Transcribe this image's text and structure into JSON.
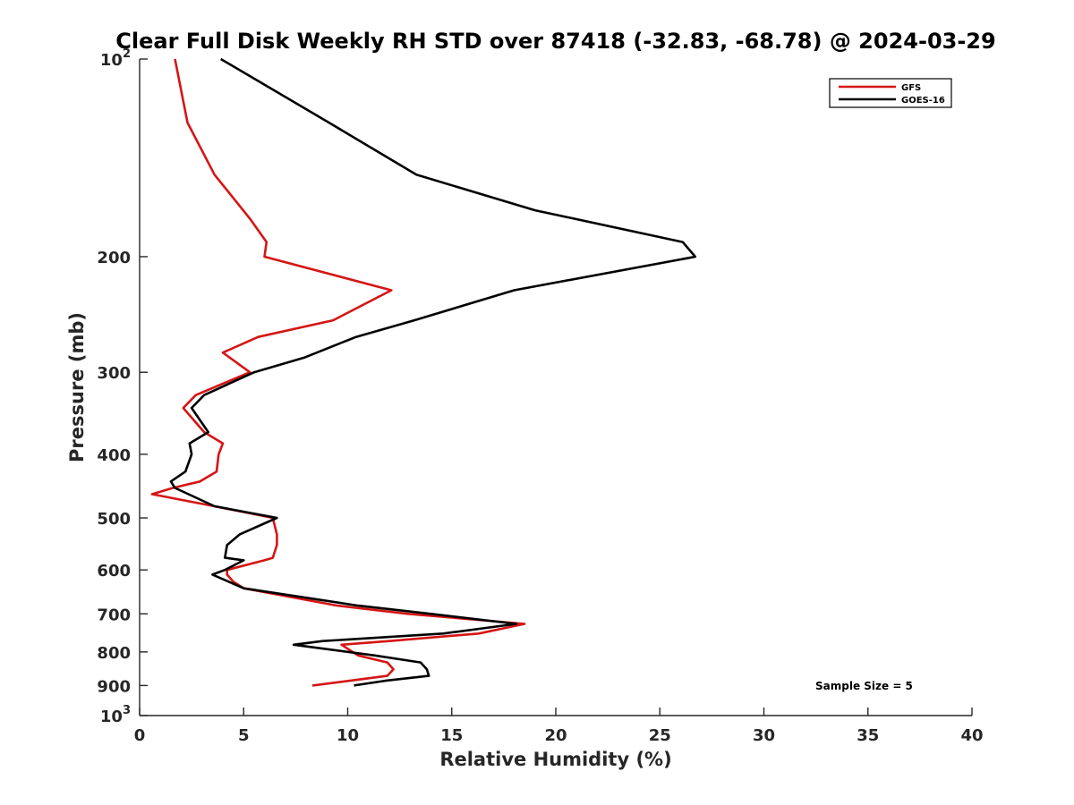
{
  "chart_data": {
    "type": "line",
    "title": "Clear Full Disk Weekly RH STD over 87418 (-32.83, -68.78) @ 2024-03-29",
    "xlabel": "Relative Humidity (%)",
    "ylabel": "Pressure (mb)",
    "xlim": [
      0,
      40
    ],
    "ylim": [
      100,
      1000
    ],
    "y_scale": "log",
    "y_reversed": true,
    "x_ticks": [
      0,
      5,
      10,
      15,
      20,
      25,
      30,
      35,
      40
    ],
    "y_ticks": [
      {
        "value": 100,
        "base": "10",
        "exp": "2"
      },
      {
        "value": 200,
        "label": "200"
      },
      {
        "value": 300,
        "label": "300"
      },
      {
        "value": 400,
        "label": "400"
      },
      {
        "value": 500,
        "label": "500"
      },
      {
        "value": 600,
        "label": "600"
      },
      {
        "value": 700,
        "label": "700"
      },
      {
        "value": 800,
        "label": "800"
      },
      {
        "value": 900,
        "label": "900"
      },
      {
        "value": 1000,
        "base": "10",
        "exp": "3"
      }
    ],
    "grid": false,
    "legend_position": "top-right",
    "annotation": "Sample Size = 5",
    "series": [
      {
        "name": "GFS",
        "color": "#d61515",
        "points": [
          [
            1.7,
            100
          ],
          [
            2.3,
            125
          ],
          [
            3.6,
            150
          ],
          [
            5.3,
            175
          ],
          [
            6.1,
            190
          ],
          [
            6.0,
            200
          ],
          [
            12.1,
            225
          ],
          [
            9.3,
            250
          ],
          [
            5.7,
            265
          ],
          [
            4.0,
            280
          ],
          [
            5.3,
            300
          ],
          [
            2.7,
            325
          ],
          [
            2.1,
            340
          ],
          [
            3.1,
            370
          ],
          [
            4.0,
            385
          ],
          [
            3.8,
            400
          ],
          [
            3.7,
            425
          ],
          [
            2.9,
            440
          ],
          [
            1.6,
            450
          ],
          [
            0.6,
            460
          ],
          [
            3.6,
            480
          ],
          [
            6.4,
            500
          ],
          [
            6.6,
            530
          ],
          [
            6.6,
            550
          ],
          [
            6.4,
            575
          ],
          [
            6.0,
            580
          ],
          [
            4.2,
            600
          ],
          [
            4.2,
            610
          ],
          [
            4.5,
            625
          ],
          [
            5.0,
            640
          ],
          [
            9.5,
            680
          ],
          [
            12.9,
            700
          ],
          [
            18.5,
            725
          ],
          [
            16.3,
            750
          ],
          [
            12.0,
            770
          ],
          [
            9.7,
            780
          ],
          [
            10.5,
            810
          ],
          [
            11.9,
            830
          ],
          [
            12.2,
            850
          ],
          [
            11.9,
            870
          ],
          [
            10.1,
            885
          ],
          [
            8.3,
            900
          ]
        ]
      },
      {
        "name": "GOES-16",
        "color": "#000000",
        "points": [
          [
            3.9,
            100
          ],
          [
            9.1,
            125
          ],
          [
            13.3,
            150
          ],
          [
            19.0,
            170
          ],
          [
            26.1,
            190
          ],
          [
            26.7,
            200
          ],
          [
            18.0,
            225
          ],
          [
            13.2,
            250
          ],
          [
            10.4,
            265
          ],
          [
            7.9,
            285
          ],
          [
            5.5,
            300
          ],
          [
            3.1,
            325
          ],
          [
            2.5,
            340
          ],
          [
            3.3,
            370
          ],
          [
            2.4,
            385
          ],
          [
            2.5,
            400
          ],
          [
            2.2,
            425
          ],
          [
            1.5,
            440
          ],
          [
            1.7,
            450
          ],
          [
            3.6,
            480
          ],
          [
            6.6,
            500
          ],
          [
            4.8,
            530
          ],
          [
            4.2,
            550
          ],
          [
            4.1,
            575
          ],
          [
            5.0,
            580
          ],
          [
            4.1,
            600
          ],
          [
            3.5,
            610
          ],
          [
            5.0,
            640
          ],
          [
            10.5,
            680
          ],
          [
            14.0,
            700
          ],
          [
            18.1,
            725
          ],
          [
            14.6,
            750
          ],
          [
            8.8,
            770
          ],
          [
            7.4,
            780
          ],
          [
            11.3,
            810
          ],
          [
            13.5,
            830
          ],
          [
            13.8,
            850
          ],
          [
            13.9,
            870
          ],
          [
            11.8,
            885
          ],
          [
            10.3,
            900
          ]
        ]
      }
    ]
  }
}
